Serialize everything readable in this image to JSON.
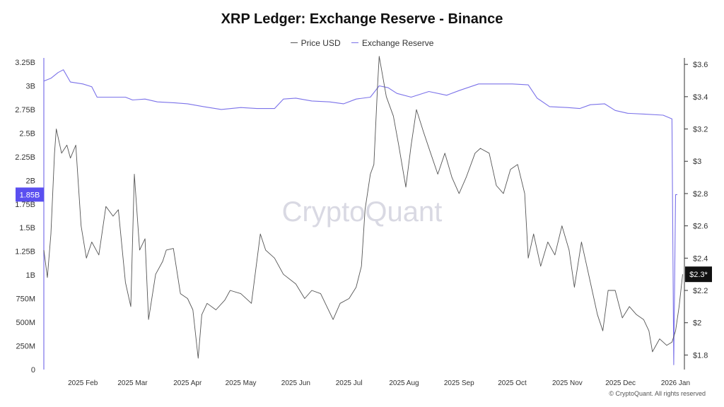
{
  "title": "XRP Ledger: Exchange Reserve - Binance",
  "legend": [
    {
      "label": "Price USD",
      "color": "#555555"
    },
    {
      "label": "Exchange Reserve",
      "color": "#7b72e9"
    }
  ],
  "watermark": "CryptoQuant",
  "copyright": "© CryptoQuant. All rights reserved",
  "chart_data": {
    "type": "line",
    "x_axis": {
      "tick_labels": [
        "2025 Feb",
        "2025 Mar",
        "2025 Apr",
        "2025 May",
        "2025 Jun",
        "2025 Jul",
        "2025 Aug",
        "2025 Sep",
        "2025 Oct",
        "2025 Nov",
        "2025 Dec",
        "2026 Jan"
      ],
      "tick_dates": [
        "2025-02-01",
        "2025-03-01",
        "2025-04-01",
        "2025-05-01",
        "2025-06-01",
        "2025-07-01",
        "2025-08-01",
        "2025-09-01",
        "2025-10-01",
        "2025-11-01",
        "2025-12-01",
        "2026-01-01"
      ],
      "range": [
        "2025-01-10",
        "2026-01-06"
      ]
    },
    "y_left": {
      "tick_labels": [
        "0",
        "250M",
        "500M",
        "750M",
        "1B",
        "1.25B",
        "1.5B",
        "1.75B",
        "2B",
        "2.25B",
        "2.5B",
        "2.75B",
        "3B",
        "3.25B"
      ],
      "tick_values": [
        0,
        250000000,
        500000000,
        750000000,
        1000000000,
        1250000000,
        1500000000,
        1750000000,
        2000000000,
        2250000000,
        2500000000,
        2750000000,
        3000000000,
        3250000000
      ],
      "range": [
        0,
        3250000000
      ]
    },
    "y_right": {
      "tick_labels": [
        "$1.8",
        "$2",
        "$2.2",
        "$2.4",
        "$2.6",
        "$2.8",
        "$3",
        "$3.2",
        "$3.4",
        "$3.6"
      ],
      "tick_values": [
        1.8,
        2.0,
        2.2,
        2.4,
        2.6,
        2.8,
        3.0,
        3.2,
        3.4,
        3.6
      ],
      "range": [
        1.71,
        3.64
      ]
    },
    "series": [
      {
        "name": "Exchange Reserve",
        "axis": "left",
        "color": "#7b72e9",
        "points": [
          [
            "2025-01-10",
            3050000000
          ],
          [
            "2025-01-14",
            3080000000
          ],
          [
            "2025-01-18",
            3140000000
          ],
          [
            "2025-01-21",
            3170000000
          ],
          [
            "2025-01-25",
            3040000000
          ],
          [
            "2025-02-01",
            3020000000
          ],
          [
            "2025-02-06",
            2990000000
          ],
          [
            "2025-02-09",
            2880000000
          ],
          [
            "2025-02-15",
            2880000000
          ],
          [
            "2025-02-25",
            2880000000
          ],
          [
            "2025-03-01",
            2850000000
          ],
          [
            "2025-03-08",
            2860000000
          ],
          [
            "2025-03-15",
            2830000000
          ],
          [
            "2025-03-25",
            2820000000
          ],
          [
            "2025-04-01",
            2810000000
          ],
          [
            "2025-04-10",
            2780000000
          ],
          [
            "2025-04-20",
            2750000000
          ],
          [
            "2025-05-01",
            2770000000
          ],
          [
            "2025-05-10",
            2760000000
          ],
          [
            "2025-05-20",
            2760000000
          ],
          [
            "2025-05-25",
            2860000000
          ],
          [
            "2025-06-01",
            2870000000
          ],
          [
            "2025-06-10",
            2840000000
          ],
          [
            "2025-06-20",
            2830000000
          ],
          [
            "2025-06-28",
            2810000000
          ],
          [
            "2025-07-05",
            2860000000
          ],
          [
            "2025-07-13",
            2880000000
          ],
          [
            "2025-07-18",
            3000000000
          ],
          [
            "2025-07-23",
            2980000000
          ],
          [
            "2025-07-28",
            2920000000
          ],
          [
            "2025-08-05",
            2880000000
          ],
          [
            "2025-08-15",
            2940000000
          ],
          [
            "2025-08-25",
            2900000000
          ],
          [
            "2025-09-01",
            2950000000
          ],
          [
            "2025-09-12",
            3020000000
          ],
          [
            "2025-09-22",
            3020000000
          ],
          [
            "2025-10-01",
            3020000000
          ],
          [
            "2025-10-10",
            3010000000
          ],
          [
            "2025-10-15",
            2870000000
          ],
          [
            "2025-10-22",
            2780000000
          ],
          [
            "2025-11-01",
            2770000000
          ],
          [
            "2025-11-08",
            2760000000
          ],
          [
            "2025-11-14",
            2800000000
          ],
          [
            "2025-11-22",
            2810000000
          ],
          [
            "2025-11-28",
            2740000000
          ],
          [
            "2025-12-05",
            2710000000
          ],
          [
            "2025-12-15",
            2700000000
          ],
          [
            "2025-12-25",
            2690000000
          ],
          [
            "2025-12-30",
            2650000000
          ],
          [
            "2025-12-31",
            50000000
          ],
          [
            "2026-01-01",
            1850000000
          ],
          [
            "2026-01-02",
            1850000000
          ]
        ]
      },
      {
        "name": "Price USD",
        "axis": "right",
        "color": "#555555",
        "points": [
          [
            "2025-01-10",
            2.45
          ],
          [
            "2025-01-12",
            2.28
          ],
          [
            "2025-01-14",
            2.55
          ],
          [
            "2025-01-16",
            3.05
          ],
          [
            "2025-01-17",
            3.2
          ],
          [
            "2025-01-20",
            3.05
          ],
          [
            "2025-01-23",
            3.1
          ],
          [
            "2025-01-25",
            3.02
          ],
          [
            "2025-01-28",
            3.1
          ],
          [
            "2025-01-31",
            2.6
          ],
          [
            "2025-02-03",
            2.4
          ],
          [
            "2025-02-06",
            2.5
          ],
          [
            "2025-02-10",
            2.42
          ],
          [
            "2025-02-14",
            2.72
          ],
          [
            "2025-02-18",
            2.66
          ],
          [
            "2025-02-21",
            2.7
          ],
          [
            "2025-02-25",
            2.25
          ],
          [
            "2025-02-28",
            2.1
          ],
          [
            "2025-03-02",
            2.92
          ],
          [
            "2025-03-05",
            2.45
          ],
          [
            "2025-03-08",
            2.52
          ],
          [
            "2025-03-10",
            2.02
          ],
          [
            "2025-03-14",
            2.3
          ],
          [
            "2025-03-18",
            2.38
          ],
          [
            "2025-03-20",
            2.45
          ],
          [
            "2025-03-24",
            2.46
          ],
          [
            "2025-03-28",
            2.18
          ],
          [
            "2025-04-01",
            2.15
          ],
          [
            "2025-04-04",
            2.08
          ],
          [
            "2025-04-07",
            1.78
          ],
          [
            "2025-04-09",
            2.05
          ],
          [
            "2025-04-12",
            2.12
          ],
          [
            "2025-04-17",
            2.08
          ],
          [
            "2025-04-22",
            2.14
          ],
          [
            "2025-04-25",
            2.2
          ],
          [
            "2025-05-01",
            2.18
          ],
          [
            "2025-05-07",
            2.12
          ],
          [
            "2025-05-12",
            2.55
          ],
          [
            "2025-05-15",
            2.45
          ],
          [
            "2025-05-20",
            2.4
          ],
          [
            "2025-05-25",
            2.3
          ],
          [
            "2025-06-01",
            2.24
          ],
          [
            "2025-06-06",
            2.15
          ],
          [
            "2025-06-10",
            2.2
          ],
          [
            "2025-06-15",
            2.18
          ],
          [
            "2025-06-22",
            2.02
          ],
          [
            "2025-06-26",
            2.12
          ],
          [
            "2025-07-01",
            2.15
          ],
          [
            "2025-07-05",
            2.22
          ],
          [
            "2025-07-08",
            2.35
          ],
          [
            "2025-07-10",
            2.7
          ],
          [
            "2025-07-13",
            2.92
          ],
          [
            "2025-07-15",
            2.98
          ],
          [
            "2025-07-17",
            3.45
          ],
          [
            "2025-07-18",
            3.65
          ],
          [
            "2025-07-22",
            3.4
          ],
          [
            "2025-07-26",
            3.28
          ],
          [
            "2025-07-29",
            3.1
          ],
          [
            "2025-08-02",
            2.84
          ],
          [
            "2025-08-05",
            3.1
          ],
          [
            "2025-08-08",
            3.32
          ],
          [
            "2025-08-12",
            3.18
          ],
          [
            "2025-08-16",
            3.05
          ],
          [
            "2025-08-20",
            2.92
          ],
          [
            "2025-08-24",
            3.05
          ],
          [
            "2025-08-28",
            2.9
          ],
          [
            "2025-09-01",
            2.8
          ],
          [
            "2025-09-05",
            2.9
          ],
          [
            "2025-09-10",
            3.05
          ],
          [
            "2025-09-13",
            3.08
          ],
          [
            "2025-09-18",
            3.05
          ],
          [
            "2025-09-22",
            2.85
          ],
          [
            "2025-09-26",
            2.8
          ],
          [
            "2025-09-30",
            2.95
          ],
          [
            "2025-10-04",
            2.98
          ],
          [
            "2025-10-08",
            2.8
          ],
          [
            "2025-10-10",
            2.4
          ],
          [
            "2025-10-13",
            2.55
          ],
          [
            "2025-10-17",
            2.35
          ],
          [
            "2025-10-21",
            2.5
          ],
          [
            "2025-10-25",
            2.42
          ],
          [
            "2025-10-29",
            2.6
          ],
          [
            "2025-11-02",
            2.45
          ],
          [
            "2025-11-05",
            2.22
          ],
          [
            "2025-11-09",
            2.5
          ],
          [
            "2025-11-12",
            2.35
          ],
          [
            "2025-11-15",
            2.2
          ],
          [
            "2025-11-18",
            2.05
          ],
          [
            "2025-11-21",
            1.95
          ],
          [
            "2025-11-24",
            2.2
          ],
          [
            "2025-11-28",
            2.2
          ],
          [
            "2025-12-02",
            2.03
          ],
          [
            "2025-12-06",
            2.1
          ],
          [
            "2025-12-10",
            2.05
          ],
          [
            "2025-12-14",
            2.02
          ],
          [
            "2025-12-17",
            1.95
          ],
          [
            "2025-12-19",
            1.82
          ],
          [
            "2025-12-23",
            1.9
          ],
          [
            "2025-12-27",
            1.86
          ],
          [
            "2025-12-30",
            1.88
          ],
          [
            "2026-01-01",
            1.95
          ],
          [
            "2026-01-03",
            2.1
          ],
          [
            "2026-01-05",
            2.3
          ]
        ]
      }
    ],
    "current_labels": {
      "reserve": "1.85B",
      "reserve_value": 1850000000,
      "price": "$2.3*",
      "price_value": 2.3
    },
    "grid": false,
    "legend_position": "top-center"
  }
}
